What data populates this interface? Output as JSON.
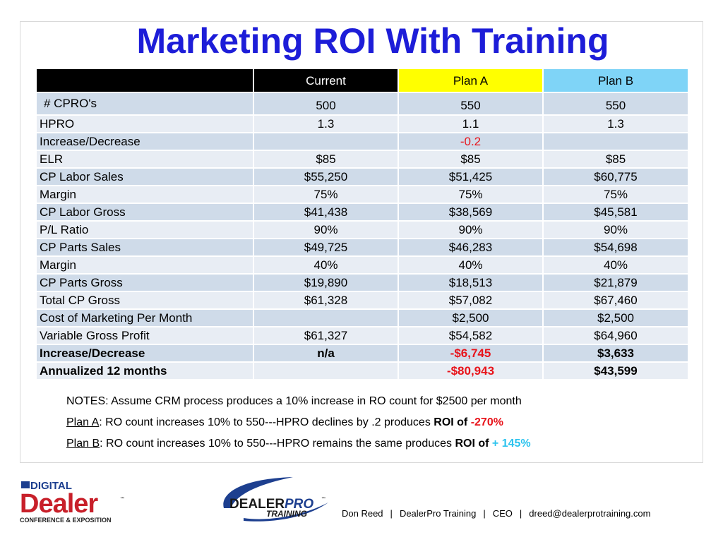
{
  "title": "Marketing ROI With Training",
  "table": {
    "headers": [
      "",
      "Current",
      "Plan A",
      "Plan B"
    ],
    "rows": [
      {
        "label": " # CPRO's",
        "current": "500",
        "plan_a": "550",
        "plan_b": "550"
      },
      {
        "label": "HPRO",
        "current": "1.3",
        "plan_a": "1.1",
        "plan_b": "1.3"
      },
      {
        "label": "Increase/Decrease",
        "current": "",
        "plan_a": "-0.2",
        "plan_b": ""
      },
      {
        "label": "ELR",
        "current": "$85",
        "plan_a": "$85",
        "plan_b": "$85"
      },
      {
        "label": "CP Labor Sales",
        "current": "$55,250",
        "plan_a": "$51,425",
        "plan_b": "$60,775"
      },
      {
        "label": "Margin",
        "current": "75%",
        "plan_a": "75%",
        "plan_b": "75%"
      },
      {
        "label": "CP Labor Gross",
        "current": "$41,438",
        "plan_a": "$38,569",
        "plan_b": "$45,581"
      },
      {
        "label": "P/L Ratio",
        "current": "90%",
        "plan_a": "90%",
        "plan_b": "90%"
      },
      {
        "label": "CP Parts Sales",
        "current": "$49,725",
        "plan_a": "$46,283",
        "plan_b": "$54,698"
      },
      {
        "label": "Margin",
        "current": "40%",
        "plan_a": "40%",
        "plan_b": "40%"
      },
      {
        "label": "CP Parts Gross",
        "current": "$19,890",
        "plan_a": "$18,513",
        "plan_b": "$21,879"
      },
      {
        "label": "Total CP Gross",
        "current": "$61,328",
        "plan_a": "$57,082",
        "plan_b": "$67,460"
      },
      {
        "label": "Cost of Marketing Per Month",
        "current": "",
        "plan_a": "$2,500",
        "plan_b": "$2,500"
      },
      {
        "label": "Variable Gross Profit",
        "current": "$61,327",
        "plan_a": "$54,582",
        "plan_b": "$64,960"
      },
      {
        "label": "Increase/Decrease",
        "current": "n/a",
        "plan_a": "-$6,745",
        "plan_b": "$3,633"
      },
      {
        "label": "Annualized 12 months",
        "current": "",
        "plan_a": "-$80,943",
        "plan_b": "$43,599"
      }
    ]
  },
  "notes": {
    "line1": "NOTES:  Assume CRM process produces a 10% increase in RO count for $2500 per month",
    "plan_a_label": "Plan A",
    "plan_a_text": ":   RO count increases 10% to 550---HPRO declines by .2 produces ",
    "plan_a_roi_label": "ROI of ",
    "plan_a_roi_value": "-270%",
    "plan_b_label": "Plan B",
    "plan_b_text": ":   RO count increases 10% to 550---HPRO remains the same produces ",
    "plan_b_roi_label": "ROI of ",
    "plan_b_roi_value": "+ 145%"
  },
  "logos": {
    "digital_dealer": {
      "line1": "DIGITAL",
      "line2": "Dealer",
      "tm": "™",
      "line3": "CONFERENCE & EXPOSITION"
    },
    "dealerpro": {
      "word1": "DEALER",
      "word2": "PRO",
      "word3": "TRAINING",
      "tm": "™"
    }
  },
  "footer": {
    "name": "Don Reed",
    "company": "DealerPro Training",
    "role": "CEO",
    "email": "dreed@dealerprotraining.com",
    "separator": "|"
  },
  "colors": {
    "title": "#1d1dd8",
    "header_dark": "#000000",
    "plan_a": "#ffff00",
    "plan_b": "#7fd4f7",
    "row_dark": "#cfdbe9",
    "row_light": "#e8edf4",
    "negative": "#e8141b",
    "positive": "#2cc3ee"
  }
}
